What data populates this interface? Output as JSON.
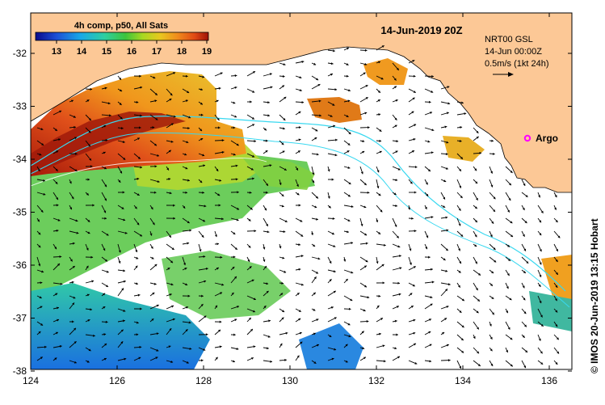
{
  "map": {
    "date_title": "14-Jun-2019 20Z",
    "colorbar": {
      "title": "4h comp, p50, All Sats",
      "ticks": [
        "13",
        "14",
        "15",
        "16",
        "17",
        "18",
        "19"
      ],
      "colors": [
        "#0a0a8c",
        "#1c4fd6",
        "#18a8e8",
        "#2ecfa0",
        "#3cc43c",
        "#a8d820",
        "#e8c81e",
        "#f08c1c",
        "#e04a14",
        "#9e1208"
      ]
    },
    "overlay": {
      "line1": "NRT00 GSL",
      "line2": "14-Jun 00:00Z",
      "line3": "0.5m/s (1kt 24h)"
    },
    "argo_label": "Argo",
    "x_ticks": [
      "124",
      "126",
      "128",
      "130",
      "132",
      "134",
      "136"
    ],
    "y_ticks": [
      "-32",
      "-33",
      "-34",
      "-35",
      "-36",
      "-37",
      "-38"
    ],
    "credit": "© IMOS 20-Jun-2019 13:15 Hobart",
    "land_color": "#fcc896",
    "argo_color": "#ff00ff"
  }
}
